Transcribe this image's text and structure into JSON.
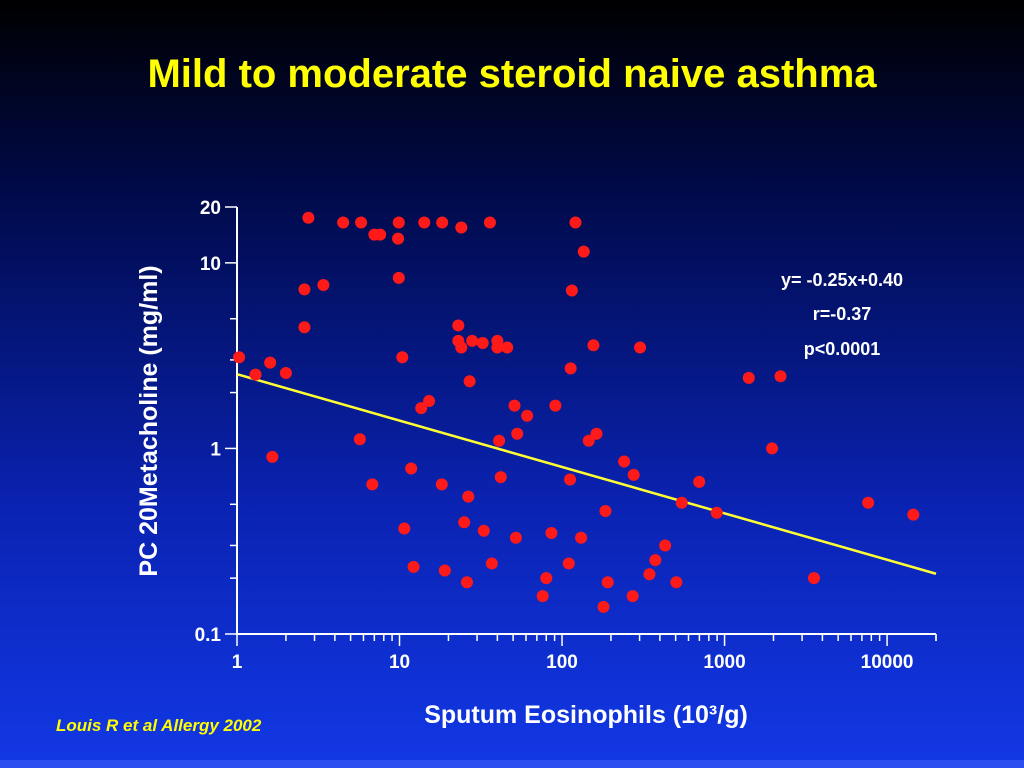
{
  "slide": {
    "title": "Mild to moderate steroid naive asthma",
    "citation": "Louis R et al Allergy 2002"
  },
  "colors": {
    "points": "#ff1a1a",
    "fit_line": "#ffff33",
    "axes": "#ffffff",
    "title": "#ffff00"
  },
  "chart_data": {
    "type": "scatter",
    "xlabel": "Sputum Eosinophils (10³/g)",
    "ylabel": "PC 20Metacholine (mg/ml)",
    "xscale": "log",
    "yscale": "log",
    "xlim": [
      1,
      20000
    ],
    "ylim": [
      0.1,
      20
    ],
    "x_ticks": [
      1,
      10,
      100,
      1000,
      10000
    ],
    "x_tick_labels": [
      "1",
      "10",
      "100",
      "1000",
      "10000"
    ],
    "y_ticks": [
      0.1,
      1,
      10,
      20
    ],
    "y_tick_labels": [
      "0.1",
      "1",
      "10",
      "20"
    ],
    "grid": false,
    "annotations": [
      "y= -0.25x+0.40",
      "r=-0.37",
      "p<0.0001"
    ],
    "annotation_position": "top-right",
    "fit_line": {
      "slope": -0.25,
      "intercept": 0.4
    },
    "points": [
      [
        1.03,
        3.1
      ],
      [
        1.3,
        2.5
      ],
      [
        1.6,
        2.9
      ],
      [
        1.65,
        0.9
      ],
      [
        2.0,
        2.55
      ],
      [
        2.6,
        7.2
      ],
      [
        2.6,
        4.5
      ],
      [
        2.75,
        17.5
      ],
      [
        3.4,
        7.6
      ],
      [
        4.5,
        16.5
      ],
      [
        5.8,
        16.5
      ],
      [
        5.7,
        1.12
      ],
      [
        6.8,
        0.64
      ],
      [
        7.0,
        14.2
      ],
      [
        7.6,
        14.2
      ],
      [
        9.9,
        16.5
      ],
      [
        9.8,
        13.5
      ],
      [
        9.9,
        8.3
      ],
      [
        10.4,
        3.1
      ],
      [
        10.7,
        0.37
      ],
      [
        11.8,
        0.78
      ],
      [
        12.2,
        0.23
      ],
      [
        13.6,
        1.65
      ],
      [
        14.2,
        16.5
      ],
      [
        15.2,
        1.8
      ],
      [
        18.3,
        16.5
      ],
      [
        18.2,
        0.64
      ],
      [
        19.0,
        0.22
      ],
      [
        23.0,
        4.6
      ],
      [
        23.0,
        3.8
      ],
      [
        24.0,
        15.5
      ],
      [
        24.0,
        3.5
      ],
      [
        25.0,
        0.4
      ],
      [
        26.0,
        0.19
      ],
      [
        26.5,
        0.55
      ],
      [
        27.0,
        2.3
      ],
      [
        28.0,
        3.8
      ],
      [
        32.5,
        3.7
      ],
      [
        33.0,
        0.36
      ],
      [
        36.0,
        16.5
      ],
      [
        37.0,
        0.24
      ],
      [
        40.0,
        3.8
      ],
      [
        40.0,
        3.5
      ],
      [
        41.0,
        1.1
      ],
      [
        42.0,
        0.7
      ],
      [
        46.0,
        3.5
      ],
      [
        51.0,
        1.7
      ],
      [
        52.0,
        0.33
      ],
      [
        53.0,
        1.2
      ],
      [
        61.0,
        1.5
      ],
      [
        76.0,
        0.16
      ],
      [
        80.0,
        0.2
      ],
      [
        86.0,
        0.35
      ],
      [
        91.0,
        1.7
      ],
      [
        110.0,
        0.24
      ],
      [
        112.0,
        0.68
      ],
      [
        113.0,
        2.7
      ],
      [
        115.0,
        7.1
      ],
      [
        121.0,
        16.5
      ],
      [
        131.0,
        0.33
      ],
      [
        136.0,
        11.5
      ],
      [
        146.0,
        1.1
      ],
      [
        156.0,
        3.6
      ],
      [
        163.0,
        1.2
      ],
      [
        180.0,
        0.14
      ],
      [
        185.0,
        0.46
      ],
      [
        191.0,
        0.19
      ],
      [
        241.0,
        0.85
      ],
      [
        272.0,
        0.16
      ],
      [
        276.0,
        0.72
      ],
      [
        302.0,
        3.5
      ],
      [
        345.0,
        0.21
      ],
      [
        375.0,
        0.25
      ],
      [
        431.0,
        0.3
      ],
      [
        505.0,
        0.19
      ],
      [
        545.0,
        0.51
      ],
      [
        698.0,
        0.66
      ],
      [
        895.0,
        0.45
      ],
      [
        1410.0,
        2.4
      ],
      [
        1960.0,
        1.0
      ],
      [
        2210.0,
        2.45
      ],
      [
        3550.0,
        0.2
      ],
      [
        7650.0,
        0.51
      ],
      [
        14500.0,
        0.44
      ]
    ]
  }
}
